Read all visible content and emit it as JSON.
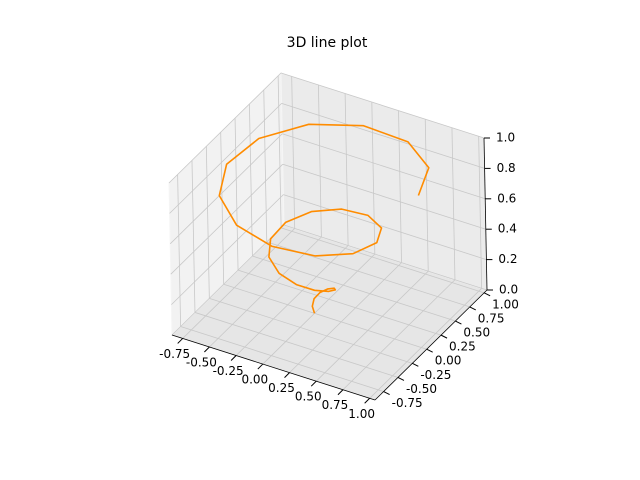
{
  "chart_data": {
    "type": "line3d",
    "title": "3D line plot",
    "color": "#ff8c00",
    "grid": true,
    "x": [
      0,
      -0.029,
      -0.033,
      0,
      0.067,
      0.144,
      0.2,
      0.202,
      0.133,
      0,
      -0.167,
      -0.318,
      -0.4,
      -0.375,
      -0.233,
      0,
      0.267,
      0.491,
      0.6,
      0.548,
      0.333,
      0,
      -0.367,
      -0.664,
      -0.8,
      -0.722,
      -0.433,
      0,
      0.467,
      0.837,
      1
    ],
    "y": [
      0,
      0.017,
      0.058,
      0.1,
      0.115,
      0.083,
      0,
      -0.117,
      -0.231,
      -0.3,
      -0.289,
      -0.183,
      0,
      0.217,
      0.404,
      0.5,
      0.462,
      0.283,
      0,
      -0.317,
      -0.577,
      -0.7,
      -0.635,
      -0.383,
      0,
      0.417,
      0.751,
      0.9,
      0.808,
      0.483,
      0
    ],
    "z": [
      0,
      0.033,
      0.067,
      0.1,
      0.133,
      0.167,
      0.2,
      0.233,
      0.267,
      0.3,
      0.333,
      0.367,
      0.4,
      0.433,
      0.467,
      0.5,
      0.533,
      0.567,
      0.6,
      0.633,
      0.667,
      0.7,
      0.733,
      0.767,
      0.8,
      0.833,
      0.867,
      0.9,
      0.933,
      0.967,
      1
    ],
    "xlim": [
      -0.85,
      1.05
    ],
    "ylim": [
      -0.9,
      1.05
    ],
    "zlim": [
      0,
      1
    ],
    "xticks": [
      {
        "value": -0.75,
        "label": "-0.75"
      },
      {
        "value": -0.5,
        "label": "-0.50"
      },
      -0.25,
      {
        "value": 0,
        "label": "0.00"
      },
      0.25,
      {
        "value": 0.5,
        "label": "0.50"
      },
      0.75,
      {
        "value": 1,
        "label": "1.00"
      }
    ],
    "yticks": [
      {
        "value": -0.75,
        "label": "-0.75"
      },
      {
        "value": -0.5,
        "label": "-0.50"
      },
      -0.25,
      {
        "value": 0,
        "label": "0.00"
      },
      0.25,
      {
        "value": 0.5,
        "label": "0.50"
      },
      0.75,
      {
        "value": 1,
        "label": "1.00"
      }
    ],
    "zticks": [
      {
        "value": 0,
        "label": "0.0"
      },
      0.2,
      0.4,
      0.6,
      0.8,
      {
        "value": 1,
        "label": "1.0"
      }
    ]
  }
}
